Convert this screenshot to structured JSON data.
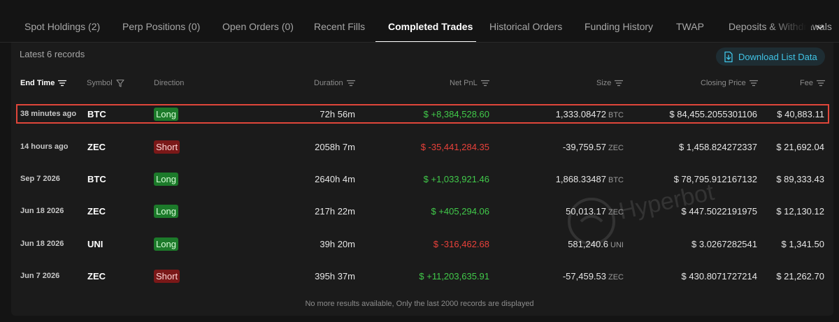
{
  "tabs": [
    {
      "label": "Spot Holdings (2)",
      "active": false
    },
    {
      "label": "Perp Positions (0)",
      "active": false
    },
    {
      "label": "Open Orders (0)",
      "active": false
    },
    {
      "label": "Recent Fills",
      "active": false
    },
    {
      "label": "Completed Trades",
      "active": true
    },
    {
      "label": "Historical Orders",
      "active": false
    },
    {
      "label": "Funding History",
      "active": false
    },
    {
      "label": "TWAP",
      "active": false
    },
    {
      "label": "Deposits & Withdrawals",
      "active": false
    }
  ],
  "records_label": "Latest 6 records",
  "download_label": "Download List Data",
  "columns": {
    "end_time": "End Time",
    "symbol": "Symbol",
    "direction": "Direction",
    "duration": "Duration",
    "net_pnl": "Net PnL",
    "size": "Size",
    "closing_price": "Closing Price",
    "fee": "Fee"
  },
  "rows": [
    {
      "end_time": "38 minutes ago",
      "symbol": "BTC",
      "direction": "Long",
      "duration": "72h 56m",
      "net_pnl": "$ +8,384,528.60",
      "size": "1,333.08472",
      "unit": "BTC",
      "closing_price": "$ 84,455.2055301106",
      "fee": "$ 40,883.11"
    },
    {
      "end_time": "14 hours ago",
      "symbol": "ZEC",
      "direction": "Short",
      "duration": "2058h 7m",
      "net_pnl": "$ -35,441,284.35",
      "size": "-39,759.57",
      "unit": "ZEC",
      "closing_price": "$ 1,458.824272337",
      "fee": "$ 21,692.04"
    },
    {
      "end_time": "Sep 7 2026",
      "symbol": "BTC",
      "direction": "Long",
      "duration": "2640h 4m",
      "net_pnl": "$ +1,033,921.46",
      "size": "1,868.33487",
      "unit": "BTC",
      "closing_price": "$ 78,795.912167132",
      "fee": "$ 89,333.43"
    },
    {
      "end_time": "Jun 18 2026",
      "symbol": "ZEC",
      "direction": "Long",
      "duration": "217h 22m",
      "net_pnl": "$ +405,294.06",
      "size": "50,013.17",
      "unit": "ZEC",
      "closing_price": "$ 447.5022191975",
      "fee": "$ 12,130.12"
    },
    {
      "end_time": "Jun 18 2026",
      "symbol": "UNI",
      "direction": "Long",
      "duration": "39h 20m",
      "net_pnl": "$ -316,462.68",
      "size": "581,240.6",
      "unit": "UNI",
      "closing_price": "$ 3.0267282541",
      "fee": "$ 1,341.50"
    },
    {
      "end_time": "Jun 7 2026",
      "symbol": "ZEC",
      "direction": "Short",
      "duration": "395h 37m",
      "net_pnl": "$ +11,203,635.91",
      "size": "-57,459.53",
      "unit": "ZEC",
      "closing_price": "$ 430.8071727214",
      "fee": "$ 21,262.70"
    }
  ],
  "footer": "No more results available, Only the last 2000 records are displayed",
  "watermark": "Hyperbot",
  "icons": {
    "download": "download-icon",
    "sort": "sort-icon",
    "filter": "filter-icon",
    "chevron": "chevron-down-icon"
  },
  "colors": {
    "positive": "#41c94a",
    "negative": "#e8413a",
    "accent": "#40c4e6",
    "highlight": "#e0463a"
  }
}
